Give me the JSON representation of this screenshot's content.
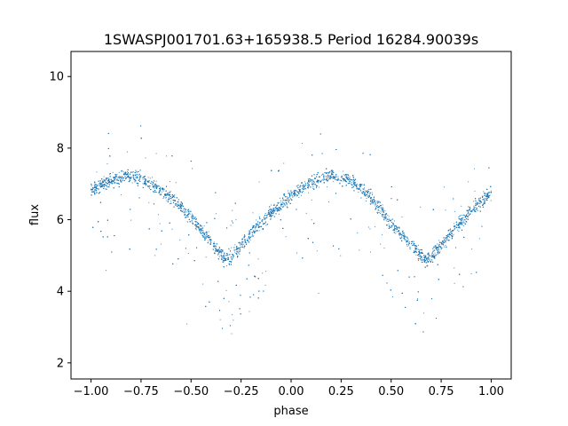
{
  "chart_data": {
    "type": "scatter",
    "title": "1SWASPJ001701.63+165938.5 Period 16284.90039s",
    "xlabel": "phase",
    "ylabel": "flux",
    "xlim": [
      -1.1,
      1.1
    ],
    "ylim": [
      1.55,
      10.7
    ],
    "xticks": [
      -1.0,
      -0.75,
      -0.5,
      -0.25,
      0.0,
      0.25,
      0.5,
      0.75,
      1.0
    ],
    "xtick_labels": [
      "−1.00",
      "−0.75",
      "−0.50",
      "−0.25",
      "0.00",
      "0.25",
      "0.50",
      "0.75",
      "1.00"
    ],
    "yticks": [
      2,
      4,
      6,
      8,
      10
    ],
    "ytick_labels": [
      "2",
      "4",
      "6",
      "8",
      "10"
    ],
    "grid": false,
    "marker_color": "#1f77b4",
    "series": [
      {
        "phase": [
          -1.0,
          -0.9,
          -0.8,
          -0.7,
          -0.6,
          -0.5,
          -0.4,
          -0.33,
          -0.3,
          -0.2,
          -0.1,
          0.0,
          0.1,
          0.2,
          0.3,
          0.4,
          0.5,
          0.6,
          0.67,
          0.7,
          0.8,
          0.9,
          1.0
        ],
        "flux": [
          6.85,
          7.1,
          7.25,
          7.0,
          6.6,
          6.1,
          5.35,
          4.9,
          4.95,
          5.6,
          6.2,
          6.65,
          7.05,
          7.25,
          7.1,
          6.6,
          5.9,
          5.3,
          4.9,
          4.95,
          5.65,
          6.25,
          6.75
        ]
      }
    ]
  }
}
